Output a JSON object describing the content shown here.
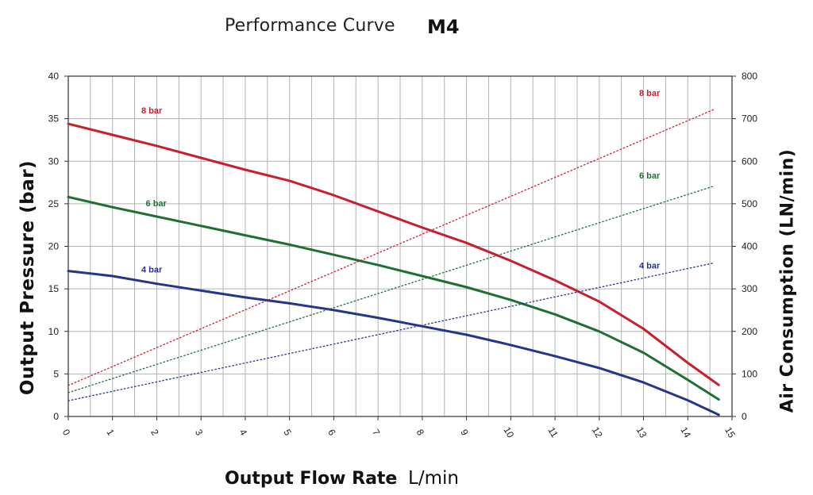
{
  "title": {
    "main": "Performance Curve",
    "model": "M4"
  },
  "colors": {
    "8bar": "#c81e2d",
    "6bar": "#1f6e34",
    "4bar": "#25358c",
    "grid": "#b3b3b3",
    "axis": "#333333"
  },
  "chart_data": {
    "type": "line",
    "xlabel": "Output Flow Rate",
    "xlabel_unit": "L/min",
    "ylabel": "Output Pressure (bar)",
    "y2label": "Air Consumption (LN/min)",
    "xlim": [
      0,
      15
    ],
    "ylim": [
      0,
      40
    ],
    "y2lim": [
      0,
      800
    ],
    "xticks": [
      "0",
      "1",
      "2",
      "3",
      "4",
      "5",
      "6",
      "7",
      "8",
      "9",
      "10",
      "11",
      "12",
      "13",
      "14",
      "15"
    ],
    "yticks": [
      "0",
      "5",
      "10",
      "15",
      "20",
      "25",
      "30",
      "35",
      "40"
    ],
    "y2ticks": [
      "0",
      "100",
      "200",
      "300",
      "400",
      "500",
      "600",
      "700",
      "800"
    ],
    "grid": true,
    "series": [
      {
        "name": "8 bar",
        "key": "8bar",
        "axis": "left",
        "style": "solid",
        "x": [
          0,
          1,
          2,
          3,
          4,
          5,
          6,
          7,
          8,
          9,
          10,
          11,
          12,
          13,
          14,
          14.7
        ],
        "y": [
          34.4,
          33.1,
          31.8,
          30.4,
          29.0,
          27.7,
          26.0,
          24.1,
          22.2,
          20.4,
          18.3,
          16.0,
          13.5,
          10.3,
          6.3,
          3.7
        ]
      },
      {
        "name": "6 bar",
        "key": "6bar",
        "axis": "left",
        "style": "solid",
        "x": [
          0,
          1,
          2,
          3,
          4,
          5,
          6,
          7,
          8,
          9,
          10,
          11,
          12,
          13,
          14,
          14.7
        ],
        "y": [
          25.8,
          24.6,
          23.5,
          22.4,
          21.3,
          20.2,
          19.0,
          17.8,
          16.5,
          15.2,
          13.7,
          12.0,
          10.0,
          7.5,
          4.3,
          2.0
        ]
      },
      {
        "name": "4 bar",
        "key": "4bar",
        "axis": "left",
        "style": "solid",
        "x": [
          0,
          1,
          2,
          3,
          4,
          5,
          6,
          7,
          8,
          9,
          10,
          11,
          12,
          13,
          14,
          14.7
        ],
        "y": [
          17.1,
          16.5,
          15.6,
          14.8,
          14.0,
          13.3,
          12.5,
          11.6,
          10.6,
          9.6,
          8.4,
          7.1,
          5.7,
          4.0,
          1.9,
          0.2
        ]
      },
      {
        "name": "8 bar",
        "key": "8bar",
        "axis": "right",
        "style": "dotted",
        "x": [
          0,
          14.6
        ],
        "y": [
          73,
          722
        ]
      },
      {
        "name": "6 bar",
        "key": "6bar",
        "axis": "right",
        "style": "dotted",
        "x": [
          0,
          14.6
        ],
        "y": [
          56,
          542
        ]
      },
      {
        "name": "4 bar",
        "key": "4bar",
        "axis": "right",
        "style": "dotted",
        "x": [
          0,
          14.6
        ],
        "y": [
          37,
          361
        ]
      }
    ],
    "annotations": [
      {
        "text": "8 bar",
        "key": "8bar",
        "x": 1.65,
        "y": 36.0,
        "axis": "left"
      },
      {
        "text": "6 bar",
        "key": "6bar",
        "x": 1.75,
        "y": 25.1,
        "axis": "left"
      },
      {
        "text": "4 bar",
        "key": "4bar",
        "x": 1.65,
        "y": 17.3,
        "axis": "left"
      },
      {
        "text": "8 bar",
        "key": "8bar",
        "x": 12.9,
        "y": 761,
        "axis": "right"
      },
      {
        "text": "6 bar",
        "key": "6bar",
        "x": 12.9,
        "y": 567,
        "axis": "right"
      },
      {
        "text": "4 bar",
        "key": "4bar",
        "x": 12.9,
        "y": 355,
        "axis": "right"
      }
    ]
  }
}
